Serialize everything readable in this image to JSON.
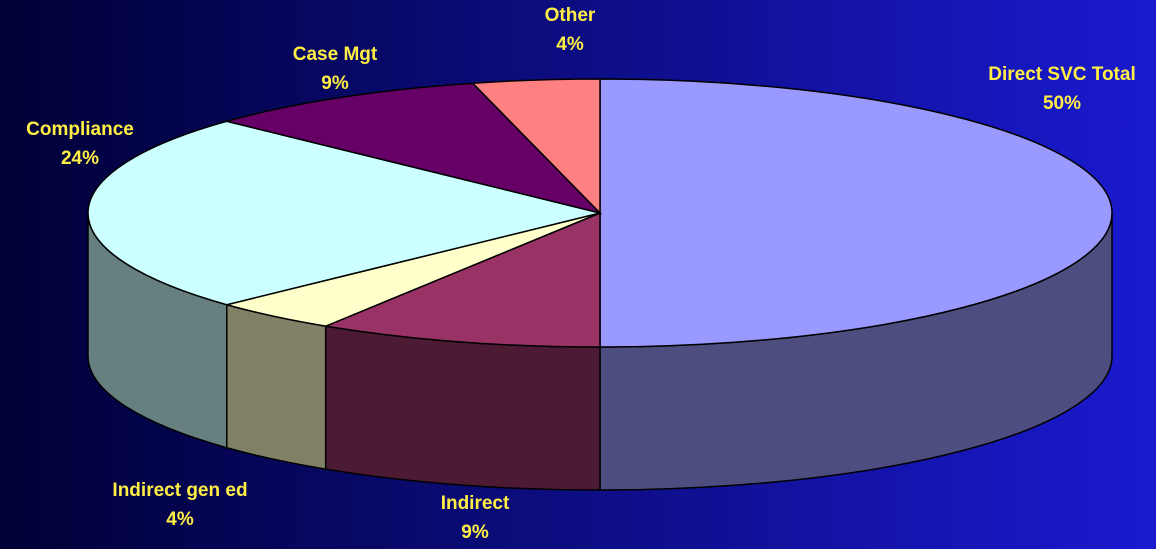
{
  "chart_data": {
    "type": "pie3d",
    "categories": [
      "Direct SVC Total",
      "Indirect",
      "Indirect gen ed",
      "Compliance",
      "Case Mgt",
      "Other"
    ],
    "values": [
      50,
      9,
      4,
      24,
      9,
      4
    ],
    "value_labels": [
      "50%",
      "9%",
      "4%",
      "24%",
      "9%",
      "4%"
    ],
    "colors": [
      "#9999ff",
      "#993366",
      "#ffffcc",
      "#ccffff",
      "#660066",
      "#ff8080"
    ]
  }
}
